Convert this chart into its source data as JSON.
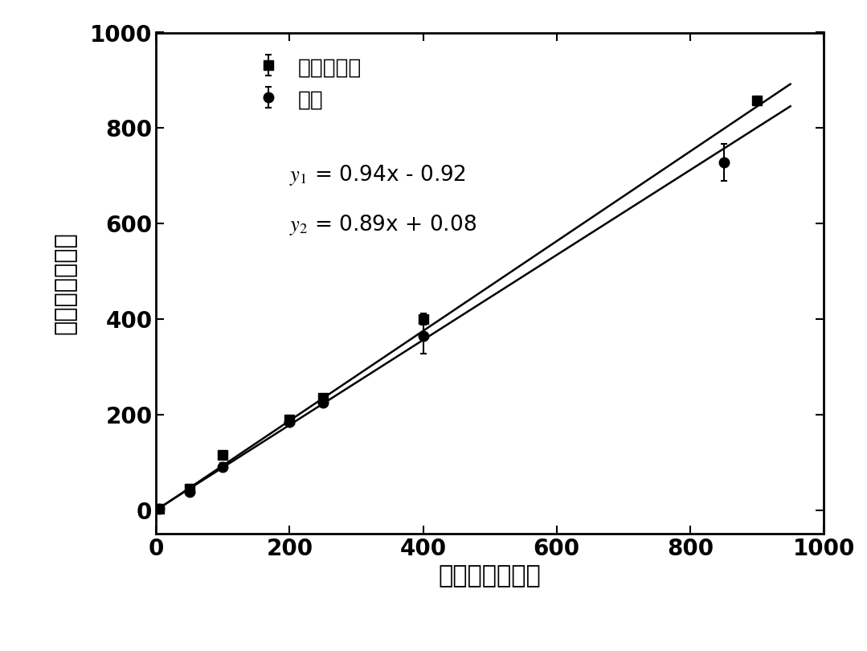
{
  "series1_label": "完全培养基",
  "series2_label": "血液",
  "eq1_slope": 0.94,
  "eq1_intercept": -0.92,
  "eq2_slope": 0.89,
  "eq2_intercept": 0.08,
  "s1_x": [
    5,
    50,
    100,
    200,
    250,
    400,
    900
  ],
  "s1_y": [
    3,
    45,
    115,
    190,
    235,
    400,
    858
  ],
  "s1_yerr": [
    2,
    5,
    8,
    8,
    8,
    12,
    8
  ],
  "s2_x": [
    5,
    50,
    100,
    200,
    250,
    400,
    850
  ],
  "s2_y": [
    3,
    38,
    90,
    185,
    225,
    365,
    728
  ],
  "s2_yerr": [
    2,
    5,
    8,
    8,
    8,
    38,
    38
  ],
  "xlabel": "加入的细胞数目",
  "ylabel": "捕获的细胞数目",
  "xlim": [
    0,
    1000
  ],
  "ylim": [
    -50,
    1000
  ],
  "xticks": [
    0,
    200,
    400,
    600,
    800,
    1000
  ],
  "yticks": [
    0,
    200,
    400,
    600,
    800,
    1000
  ],
  "marker_color": "#000000",
  "line_color": "#000000",
  "bg_color": "#ffffff",
  "marker_size": 8,
  "linewidth": 1.8,
  "font_size_label": 22,
  "font_size_tick": 20,
  "font_size_legend": 19,
  "font_size_eq": 19
}
